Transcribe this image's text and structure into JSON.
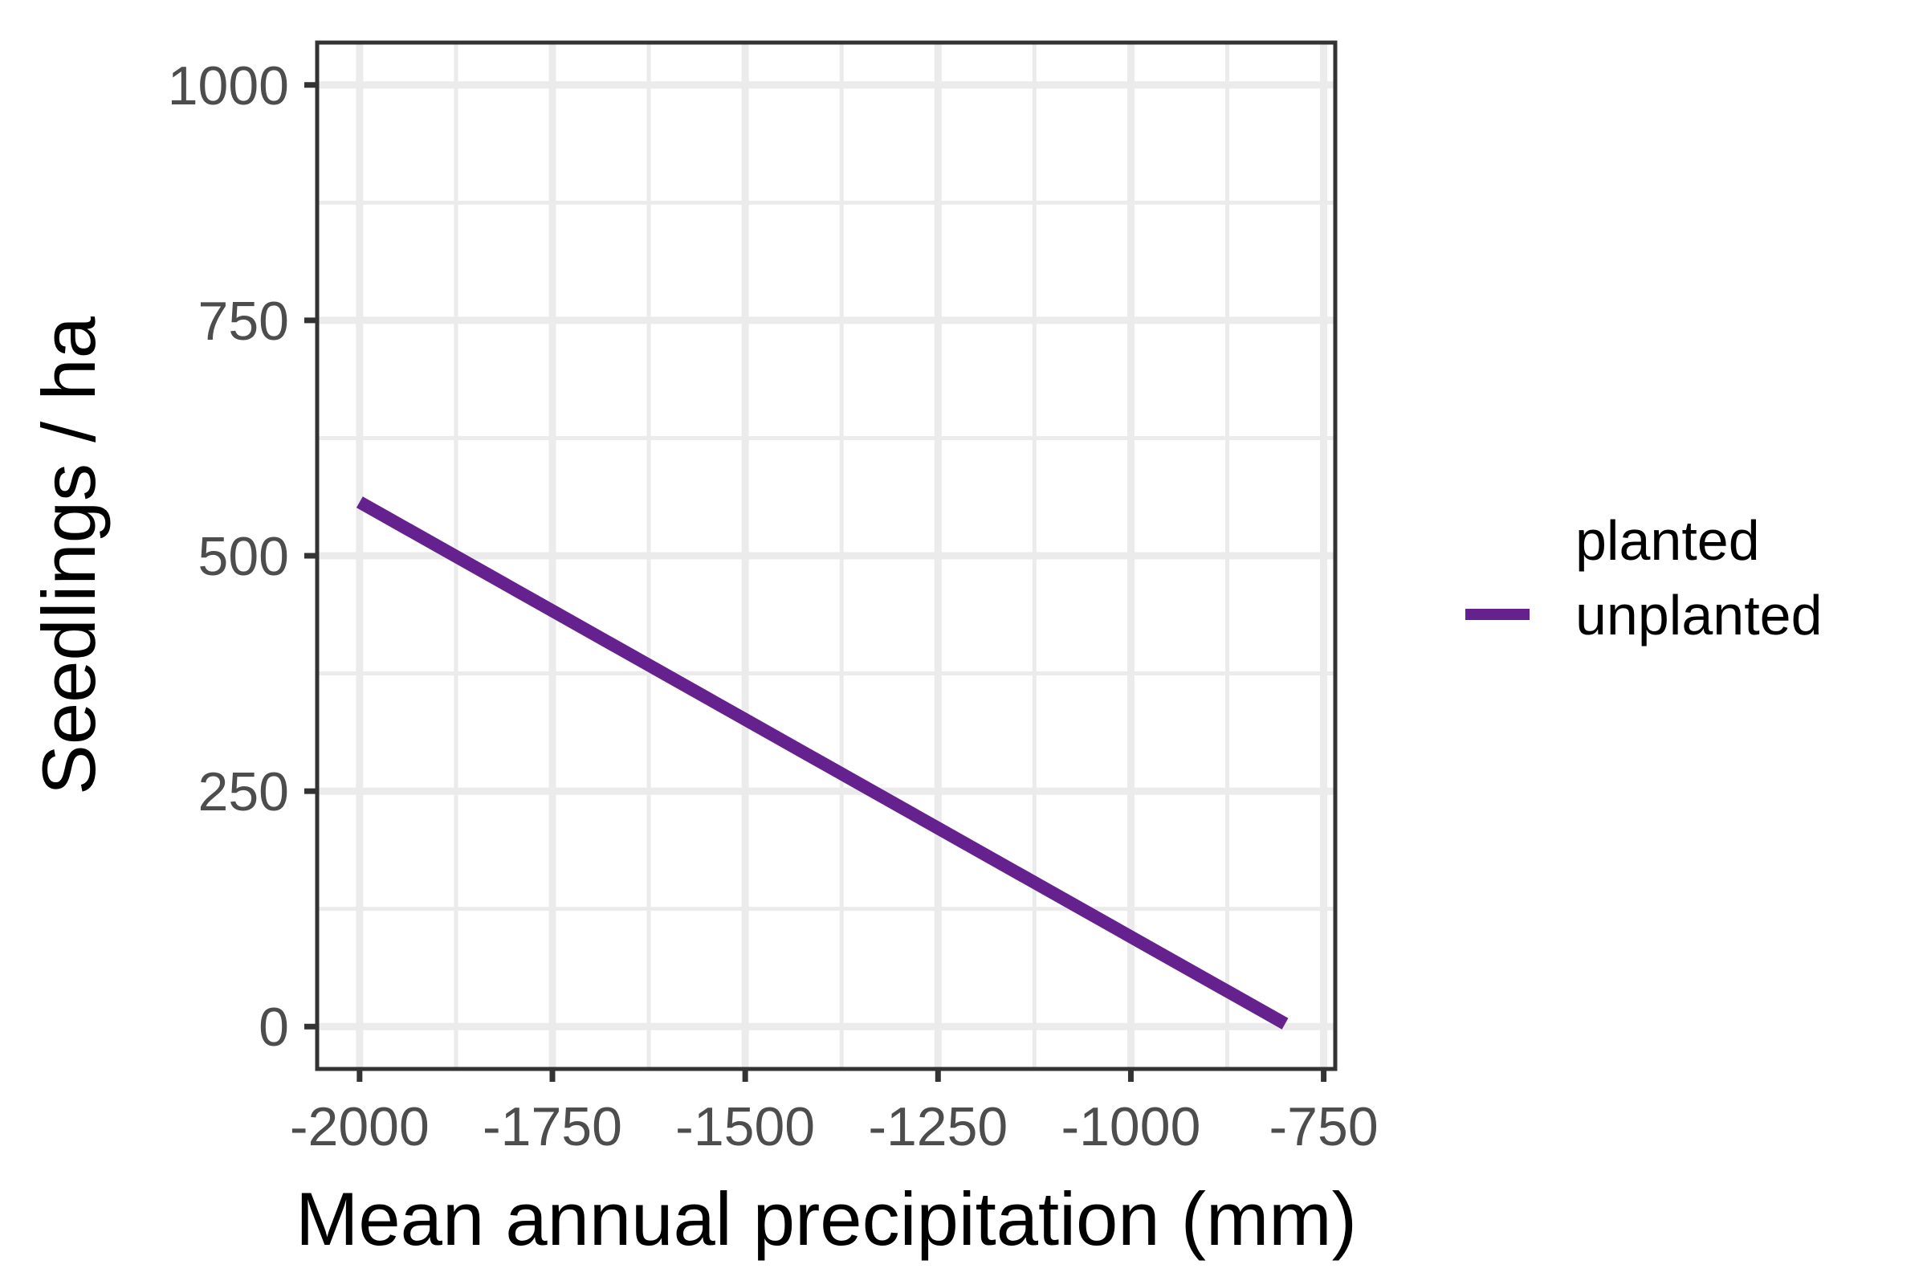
{
  "chart_data": {
    "type": "line",
    "title": "",
    "xlabel": "Mean annual precipitation (mm)",
    "ylabel": "Seedlings / ha",
    "xlim": [
      -2055,
      -735
    ],
    "ylim": [
      -45,
      1045
    ],
    "x_ticks": [
      -2000,
      -1750,
      -1500,
      -1250,
      -1000,
      -750
    ],
    "x_tick_labels": [
      "-2000",
      "-1750",
      "-1500",
      "-1250",
      "-1000",
      "-750"
    ],
    "x_minor_ticks": [
      -1875,
      -1625,
      -1375,
      -1125,
      -875
    ],
    "y_ticks": [
      0,
      250,
      500,
      750,
      1000
    ],
    "y_tick_labels": [
      "0",
      "250",
      "500",
      "750",
      "1000"
    ],
    "y_minor_ticks": [
      125,
      375,
      625,
      875
    ],
    "grid": true,
    "legend": {
      "position": "right",
      "entries": [
        {
          "label": "planted",
          "color": null
        },
        {
          "label": "unplanted",
          "color": "#65218e"
        }
      ]
    },
    "series": [
      {
        "name": "unplanted",
        "color": "#65218e",
        "x": [
          -2000,
          -800
        ],
        "y": [
          557,
          3
        ]
      }
    ]
  }
}
